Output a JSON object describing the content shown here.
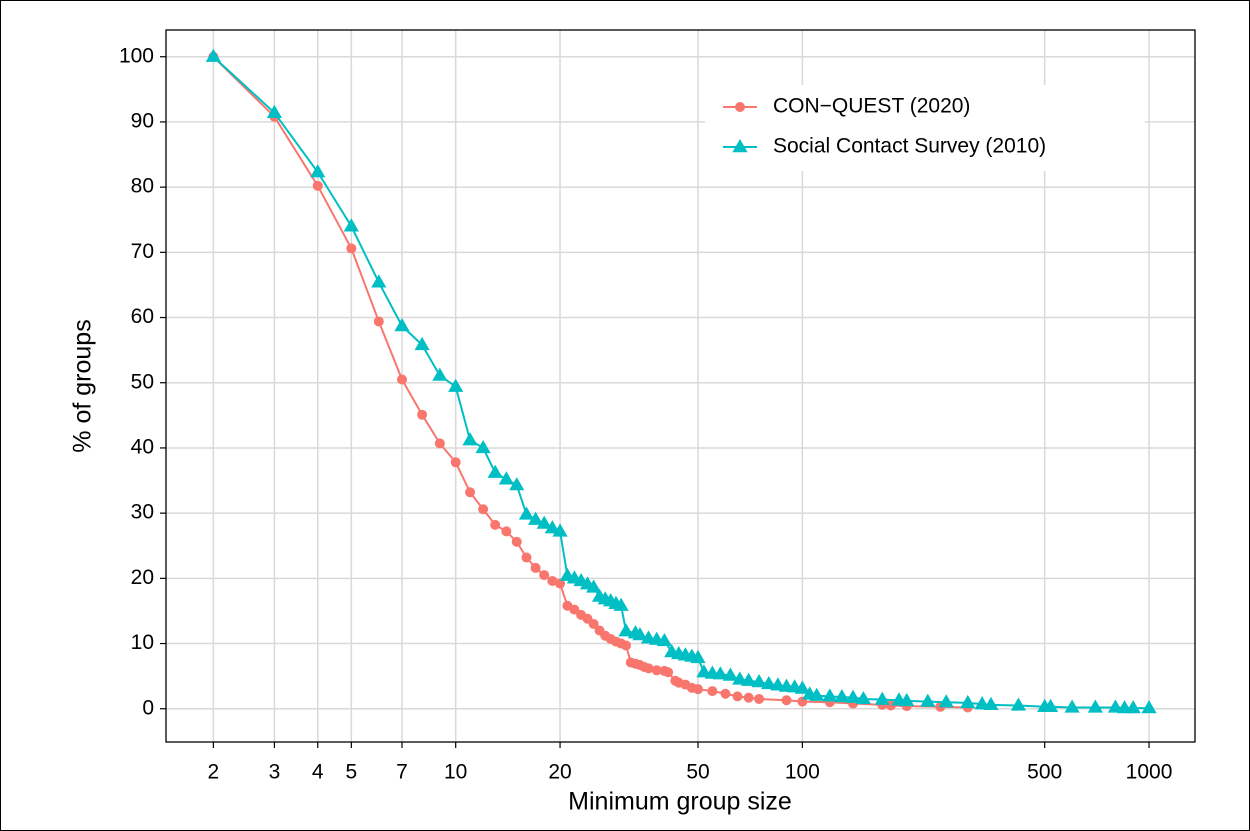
{
  "chart_data": {
    "type": "line",
    "x_label": "Minimum group size",
    "y_label": "% of groups",
    "x_log": true,
    "grid": true,
    "legend": "top-right",
    "xlim": [
      1.46,
      1357
    ],
    "ylim": [
      -5.1,
      104.1
    ],
    "xticks": [
      2,
      3,
      4,
      5,
      7,
      10,
      20,
      50,
      100,
      500,
      1000
    ],
    "yticks": [
      0,
      10,
      20,
      30,
      40,
      50,
      60,
      70,
      80,
      90,
      100
    ],
    "series": [
      {
        "name": "CON−QUEST (2020)",
        "color": "#F8766D",
        "marker": "circle",
        "x": [
          2,
          3,
          4,
          5,
          6,
          7,
          8,
          9,
          10,
          11,
          12,
          13,
          14,
          15,
          16,
          17,
          18,
          19,
          20,
          21,
          22,
          23,
          24,
          25,
          26,
          27,
          28,
          29,
          30,
          31,
          32,
          33,
          34,
          35,
          36,
          38,
          40,
          41,
          43,
          44,
          46,
          48,
          50,
          55,
          60,
          65,
          70,
          75,
          90,
          100,
          120,
          140,
          170,
          180,
          200,
          250,
          300
        ],
        "values": [
          100,
          90.8,
          80.2,
          70.6,
          59.4,
          50.5,
          45.1,
          40.7,
          37.8,
          33.2,
          30.6,
          28.2,
          27.2,
          25.6,
          23.2,
          21.6,
          20.5,
          19.6,
          19.2,
          15.8,
          15.2,
          14.4,
          13.8,
          13.0,
          12.0,
          11.2,
          10.7,
          10.3,
          10.0,
          9.7,
          7.1,
          6.9,
          6.7,
          6.4,
          6.2,
          5.9,
          5.8,
          5.6,
          4.3,
          4.0,
          3.7,
          3.2,
          3.0,
          2.7,
          2.3,
          1.9,
          1.7,
          1.5,
          1.3,
          1.1,
          1.0,
          0.8,
          0.6,
          0.5,
          0.4,
          0.3,
          0.2
        ]
      },
      {
        "name": "Social Contact Survey (2010)",
        "color": "#00BFC4",
        "marker": "triangle",
        "x": [
          2,
          3,
          4,
          5,
          6,
          7,
          8,
          9,
          10,
          11,
          12,
          13,
          14,
          15,
          16,
          17,
          18,
          19,
          20,
          21,
          22,
          23,
          24,
          25,
          26,
          27,
          28,
          29,
          30,
          31,
          33,
          34,
          36,
          38,
          40,
          42,
          44,
          46,
          48,
          50,
          52,
          55,
          58,
          62,
          66,
          70,
          75,
          80,
          85,
          90,
          95,
          100,
          105,
          110,
          120,
          130,
          140,
          150,
          170,
          190,
          200,
          230,
          260,
          300,
          330,
          350,
          420,
          500,
          520,
          600,
          700,
          800,
          850,
          900,
          1000
        ],
        "values": [
          100,
          91.4,
          82.3,
          74.0,
          65.4,
          58.7,
          55.8,
          51.1,
          49.4,
          41.2,
          40.0,
          36.2,
          35.2,
          34.3,
          29.8,
          29.0,
          28.4,
          27.7,
          27.2,
          20.4,
          20.0,
          19.6,
          19.1,
          18.6,
          17.2,
          16.8,
          16.5,
          16.1,
          15.8,
          11.9,
          11.6,
          11.3,
          10.8,
          10.6,
          10.4,
          8.7,
          8.4,
          8.2,
          8.0,
          7.8,
          5.6,
          5.4,
          5.3,
          5.1,
          4.5,
          4.3,
          4.1,
          3.8,
          3.6,
          3.4,
          3.3,
          3.1,
          2.2,
          2.0,
          1.9,
          1.8,
          1.7,
          1.5,
          1.4,
          1.3,
          1.2,
          1.1,
          1.0,
          0.9,
          0.7,
          0.6,
          0.5,
          0.3,
          0.3,
          0.2,
          0.2,
          0.2,
          0.1,
          0.1,
          0.1
        ]
      }
    ]
  }
}
